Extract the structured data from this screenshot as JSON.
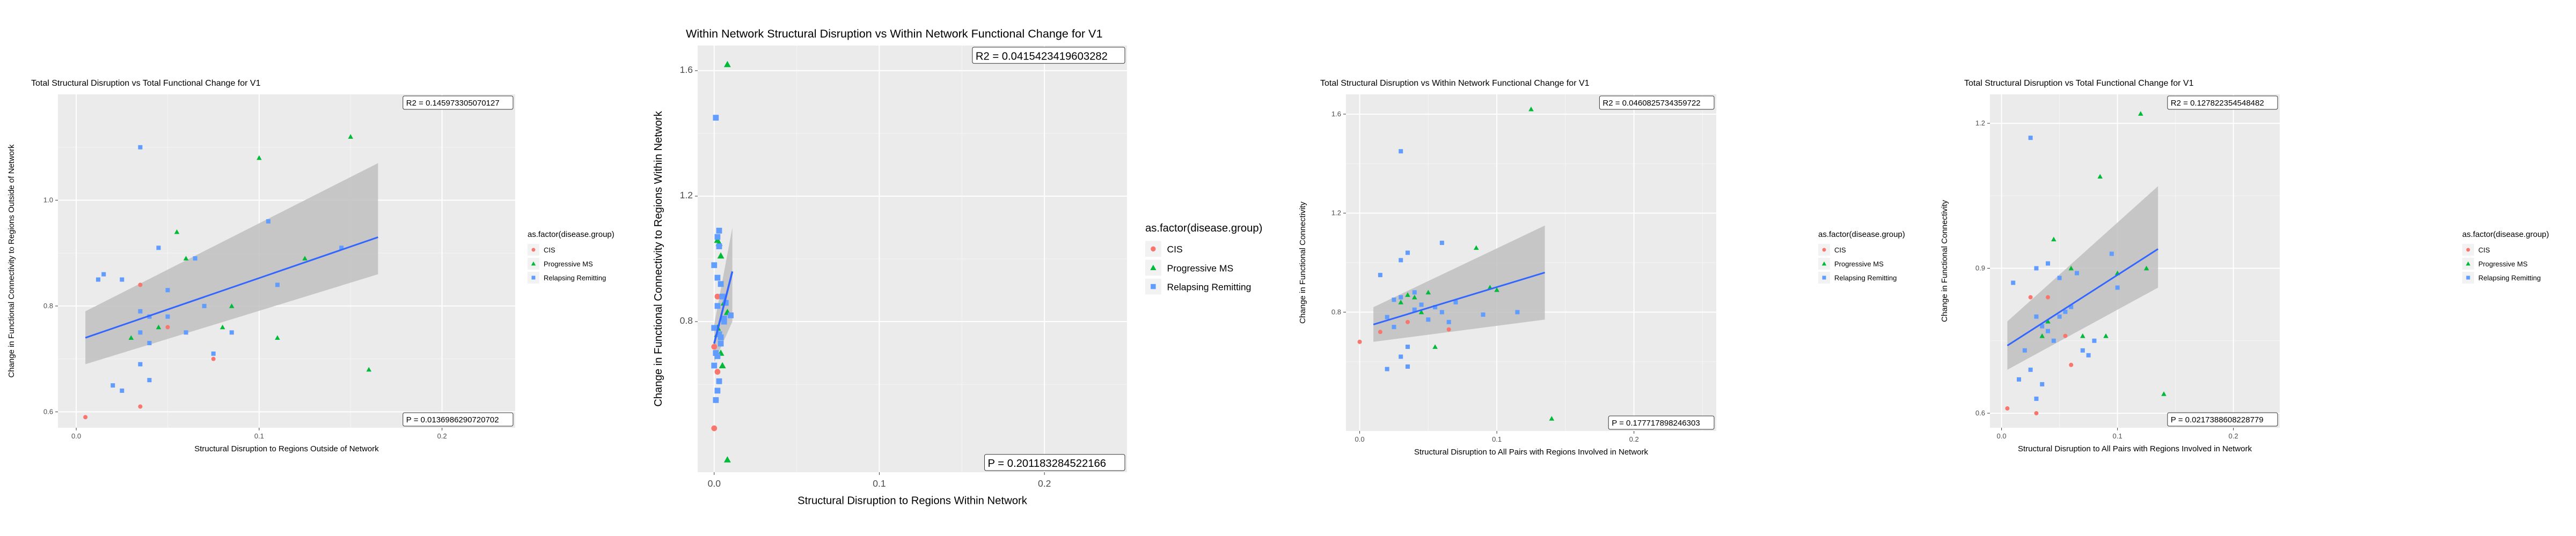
{
  "page": {
    "background": "#ffffff"
  },
  "colors": {
    "panel_bg": "#ebebeb",
    "grid_major": "#ffffff",
    "grid_minor": "#f5f5f5",
    "ci_band": "#bfbfbf",
    "fit_line": "#3366ff",
    "CIS": "#f8766d",
    "Progressive MS": "#00ba38",
    "Relapsing Remitting": "#619cff"
  },
  "chart_data": [
    {
      "type": "scatter",
      "title": "Total Structural Disruption vs Total Functional Change for V1",
      "xlabel": "Structural Disruption to Regions Outside of Network",
      "ylabel": "Change in Functional Connectivity to Regions Outside of Network",
      "xlim": [
        -0.01,
        0.24
      ],
      "ylim": [
        0.57,
        1.2
      ],
      "x_ticks": [
        {
          "v": 0.0,
          "label": "0.0"
        },
        {
          "v": 0.1,
          "label": "0.1"
        },
        {
          "v": 0.2,
          "label": "0.2"
        }
      ],
      "y_ticks": [
        {
          "v": 0.6,
          "label": "0.6"
        },
        {
          "v": 0.8,
          "label": "0.8"
        },
        {
          "v": 1.0,
          "label": "1.0"
        }
      ],
      "r2_text": "R2 =  0.145973305070127",
      "p_text": "P =  0.0136986290720702",
      "legend": {
        "title": "as.factor(disease.group)",
        "items": [
          "CIS",
          "Progressive MS",
          "Relapsing Remitting"
        ]
      },
      "fit": {
        "x": [
          0.005,
          0.165
        ],
        "y": [
          0.74,
          0.93
        ],
        "ci_lower": [
          0.69,
          0.86
        ],
        "ci_upper": [
          0.79,
          1.07
        ]
      },
      "series": [
        {
          "name": "CIS",
          "shape": "circle",
          "points": [
            [
              0.005,
              0.59
            ],
            [
              0.035,
              0.84
            ],
            [
              0.035,
              0.61
            ],
            [
              0.075,
              0.7
            ],
            [
              0.05,
              0.76
            ]
          ]
        },
        {
          "name": "Progressive MS",
          "shape": "triangle",
          "points": [
            [
              0.1,
              1.08
            ],
            [
              0.15,
              1.12
            ],
            [
              0.11,
              0.74
            ],
            [
              0.085,
              0.8
            ],
            [
              0.055,
              0.94
            ],
            [
              0.06,
              0.89
            ],
            [
              0.03,
              0.74
            ],
            [
              0.045,
              0.76
            ],
            [
              0.125,
              0.89
            ],
            [
              0.16,
              0.68
            ],
            [
              0.08,
              0.76
            ]
          ]
        },
        {
          "name": "Relapsing Remitting",
          "shape": "square",
          "points": [
            [
              0.035,
              1.1
            ],
            [
              0.015,
              0.86
            ],
            [
              0.012,
              0.85
            ],
            [
              0.025,
              0.85
            ],
            [
              0.045,
              0.91
            ],
            [
              0.065,
              0.89
            ],
            [
              0.04,
              0.73
            ],
            [
              0.05,
              0.83
            ],
            [
              0.035,
              0.79
            ],
            [
              0.04,
              0.78
            ],
            [
              0.07,
              0.8
            ],
            [
              0.06,
              0.75
            ],
            [
              0.075,
              0.71
            ],
            [
              0.085,
              0.75
            ],
            [
              0.035,
              0.69
            ],
            [
              0.04,
              0.66
            ],
            [
              0.02,
              0.65
            ],
            [
              0.025,
              0.64
            ],
            [
              0.105,
              0.96
            ],
            [
              0.11,
              0.84
            ],
            [
              0.145,
              0.91
            ],
            [
              0.035,
              0.75
            ],
            [
              0.05,
              0.78
            ]
          ]
        }
      ]
    },
    {
      "type": "scatter",
      "title": "Within Network Structural Disruption vs Within Network Functional Change for V1",
      "xlabel": "Structural Disruption to Regions Within Network",
      "ylabel": "Change in Functional Connectivity to Regions Within Network",
      "xlim": [
        -0.01,
        0.25
      ],
      "ylim": [
        0.32,
        1.68
      ],
      "x_ticks": [
        {
          "v": 0.0,
          "label": "0.0"
        },
        {
          "v": 0.1,
          "label": "0.1"
        },
        {
          "v": 0.2,
          "label": "0.2"
        }
      ],
      "y_ticks": [
        {
          "v": 0.8,
          "label": "0.8"
        },
        {
          "v": 1.2,
          "label": "1.2"
        },
        {
          "v": 1.6,
          "label": "1.6"
        }
      ],
      "r2_text": "R2 =  0.0415423419603282",
      "p_text": "P =  0.201183284522166",
      "legend": {
        "title": "as.factor(disease.group)",
        "items": [
          "CIS",
          "Progressive MS",
          "Relapsing Remitting"
        ]
      },
      "fit": {
        "x": [
          0.0,
          0.011
        ],
        "y": [
          0.73,
          0.96
        ],
        "ci_lower": [
          0.67,
          0.8
        ],
        "ci_upper": [
          0.79,
          1.1
        ]
      },
      "series": [
        {
          "name": "CIS",
          "shape": "circle",
          "points": [
            [
              0.0,
              0.72
            ],
            [
              0.002,
              0.64
            ],
            [
              0.001,
              0.55
            ],
            [
              0.003,
              0.61
            ],
            [
              0.0,
              0.46
            ],
            [
              0.002,
              0.88
            ]
          ]
        },
        {
          "name": "Progressive MS",
          "shape": "triangle",
          "points": [
            [
              0.008,
              1.62
            ],
            [
              0.002,
              1.06
            ],
            [
              0.004,
              1.01
            ],
            [
              0.006,
              0.86
            ],
            [
              0.008,
              0.83
            ],
            [
              0.002,
              0.78
            ],
            [
              0.004,
              0.7
            ],
            [
              0.005,
              0.66
            ],
            [
              0.002,
              0.76
            ],
            [
              0.008,
              0.36
            ],
            [
              0.003,
              1.05
            ]
          ]
        },
        {
          "name": "Relapsing Remitting",
          "shape": "square",
          "points": [
            [
              0.001,
              1.45
            ],
            [
              0.003,
              1.09
            ],
            [
              0.002,
              1.07
            ],
            [
              0.003,
              1.04
            ],
            [
              0.0,
              0.98
            ],
            [
              0.002,
              0.94
            ],
            [
              0.004,
              0.92
            ],
            [
              0.005,
              0.88
            ],
            [
              0.002,
              0.85
            ],
            [
              0.006,
              0.81
            ],
            [
              0.0,
              0.78
            ],
            [
              0.003,
              0.76
            ],
            [
              0.004,
              0.75
            ],
            [
              0.001,
              0.7
            ],
            [
              0.002,
              0.69
            ],
            [
              0.0,
              0.66
            ],
            [
              0.003,
              0.61
            ],
            [
              0.002,
              0.58
            ],
            [
              0.001,
              0.55
            ],
            [
              0.007,
              0.86
            ],
            [
              0.01,
              0.82
            ],
            [
              0.006,
              0.8
            ],
            [
              0.004,
              0.73
            ]
          ]
        }
      ]
    },
    {
      "type": "scatter",
      "title": "Total Structural Disruption vs Within Network Functional Change for V1",
      "xlabel": "Structural Disruption to All Pairs with Regions Involved in Network",
      "ylabel": "Change in Functional Connectivity",
      "xlim": [
        -0.01,
        0.26
      ],
      "ylim": [
        0.32,
        1.68
      ],
      "x_ticks": [
        {
          "v": 0.0,
          "label": "0.0"
        },
        {
          "v": 0.1,
          "label": "0.1"
        },
        {
          "v": 0.2,
          "label": "0.2"
        }
      ],
      "y_ticks": [
        {
          "v": 0.8,
          "label": "0.8"
        },
        {
          "v": 1.2,
          "label": "1.2"
        },
        {
          "v": 1.6,
          "label": "1.6"
        }
      ],
      "r2_text": "R2 =  0.0460825734359722",
      "p_text": "P =  0.177717898246303",
      "legend": {
        "title": "as.factor(disease.group)",
        "items": [
          "CIS",
          "Progressive MS",
          "Relapsing Remitting"
        ]
      },
      "fit": {
        "x": [
          0.01,
          0.135
        ],
        "y": [
          0.75,
          0.96
        ],
        "ci_lower": [
          0.68,
          0.77
        ],
        "ci_upper": [
          0.82,
          1.15
        ]
      },
      "series": [
        {
          "name": "CIS",
          "shape": "circle",
          "points": [
            [
              0.0,
              0.68
            ],
            [
              0.015,
              0.72
            ],
            [
              0.03,
              0.62
            ],
            [
              0.065,
              0.73
            ],
            [
              0.035,
              0.76
            ]
          ]
        },
        {
          "name": "Progressive MS",
          "shape": "triangle",
          "points": [
            [
              0.125,
              1.62
            ],
            [
              0.14,
              0.37
            ],
            [
              0.05,
              0.88
            ],
            [
              0.085,
              1.06
            ],
            [
              0.095,
              0.9
            ],
            [
              0.1,
              0.89
            ],
            [
              0.04,
              0.86
            ],
            [
              0.045,
              0.8
            ],
            [
              0.055,
              0.66
            ],
            [
              0.03,
              0.84
            ],
            [
              0.035,
              0.87
            ]
          ]
        },
        {
          "name": "Relapsing Remitting",
          "shape": "square",
          "points": [
            [
              0.03,
              1.45
            ],
            [
              0.015,
              0.95
            ],
            [
              0.03,
              1.01
            ],
            [
              0.035,
              1.04
            ],
            [
              0.06,
              1.08
            ],
            [
              0.04,
              0.88
            ],
            [
              0.03,
              0.86
            ],
            [
              0.025,
              0.85
            ],
            [
              0.045,
              0.83
            ],
            [
              0.055,
              0.82
            ],
            [
              0.06,
              0.8
            ],
            [
              0.065,
              0.76
            ],
            [
              0.09,
              0.79
            ],
            [
              0.02,
              0.78
            ],
            [
              0.025,
              0.74
            ],
            [
              0.035,
              0.66
            ],
            [
              0.03,
              0.62
            ],
            [
              0.035,
              0.58
            ],
            [
              0.02,
              0.57
            ],
            [
              0.115,
              0.8
            ],
            [
              0.07,
              0.84
            ],
            [
              0.05,
              0.77
            ],
            [
              0.04,
              0.81
            ]
          ]
        }
      ]
    },
    {
      "type": "scatter",
      "title": "Total Structural Disruption vs Total Functional Change for V1",
      "xlabel": "Structural Disruption to All Pairs with Regions Involved in Network",
      "ylabel": "Change in Functional Connectivity",
      "xlim": [
        -0.01,
        0.24
      ],
      "ylim": [
        0.57,
        1.26
      ],
      "x_ticks": [
        {
          "v": 0.0,
          "label": "0.0"
        },
        {
          "v": 0.1,
          "label": "0.1"
        },
        {
          "v": 0.2,
          "label": "0.2"
        }
      ],
      "y_ticks": [
        {
          "v": 0.6,
          "label": "0.6"
        },
        {
          "v": 0.9,
          "label": "0.9"
        },
        {
          "v": 1.2,
          "label": "1.2"
        }
      ],
      "r2_text": "R2 =  0.127822354548482",
      "p_text": "P =  0.0217388608228779",
      "legend": {
        "title": "as.factor(disease.group)",
        "items": [
          "CIS",
          "Progressive MS",
          "Relapsing Remitting"
        ]
      },
      "fit": {
        "x": [
          0.005,
          0.135
        ],
        "y": [
          0.74,
          0.94
        ],
        "ci_lower": [
          0.69,
          0.86
        ],
        "ci_upper": [
          0.79,
          1.07
        ]
      },
      "series": [
        {
          "name": "CIS",
          "shape": "circle",
          "points": [
            [
              0.005,
              0.61
            ],
            [
              0.025,
              0.84
            ],
            [
              0.04,
              0.84
            ],
            [
              0.03,
              0.6
            ],
            [
              0.06,
              0.7
            ],
            [
              0.055,
              0.76
            ]
          ]
        },
        {
          "name": "Progressive MS",
          "shape": "triangle",
          "points": [
            [
              0.12,
              1.22
            ],
            [
              0.085,
              1.09
            ],
            [
              0.045,
              0.96
            ],
            [
              0.06,
              0.9
            ],
            [
              0.14,
              0.64
            ],
            [
              0.09,
              0.76
            ],
            [
              0.07,
              0.76
            ],
            [
              0.04,
              0.79
            ],
            [
              0.035,
              0.76
            ],
            [
              0.125,
              0.9
            ],
            [
              0.1,
              0.89
            ]
          ]
        },
        {
          "name": "Relapsing Remitting",
          "shape": "square",
          "points": [
            [
              0.025,
              1.17
            ],
            [
              0.01,
              0.87
            ],
            [
              0.03,
              0.9
            ],
            [
              0.04,
              0.91
            ],
            [
              0.05,
              0.88
            ],
            [
              0.065,
              0.89
            ],
            [
              0.095,
              0.93
            ],
            [
              0.03,
              0.8
            ],
            [
              0.035,
              0.78
            ],
            [
              0.045,
              0.75
            ],
            [
              0.055,
              0.81
            ],
            [
              0.07,
              0.73
            ],
            [
              0.075,
              0.72
            ],
            [
              0.08,
              0.75
            ],
            [
              0.02,
              0.73
            ],
            [
              0.025,
              0.69
            ],
            [
              0.035,
              0.66
            ],
            [
              0.03,
              0.63
            ],
            [
              0.015,
              0.67
            ],
            [
              0.1,
              0.86
            ],
            [
              0.06,
              0.82
            ],
            [
              0.04,
              0.77
            ],
            [
              0.05,
              0.8
            ]
          ]
        }
      ]
    }
  ]
}
